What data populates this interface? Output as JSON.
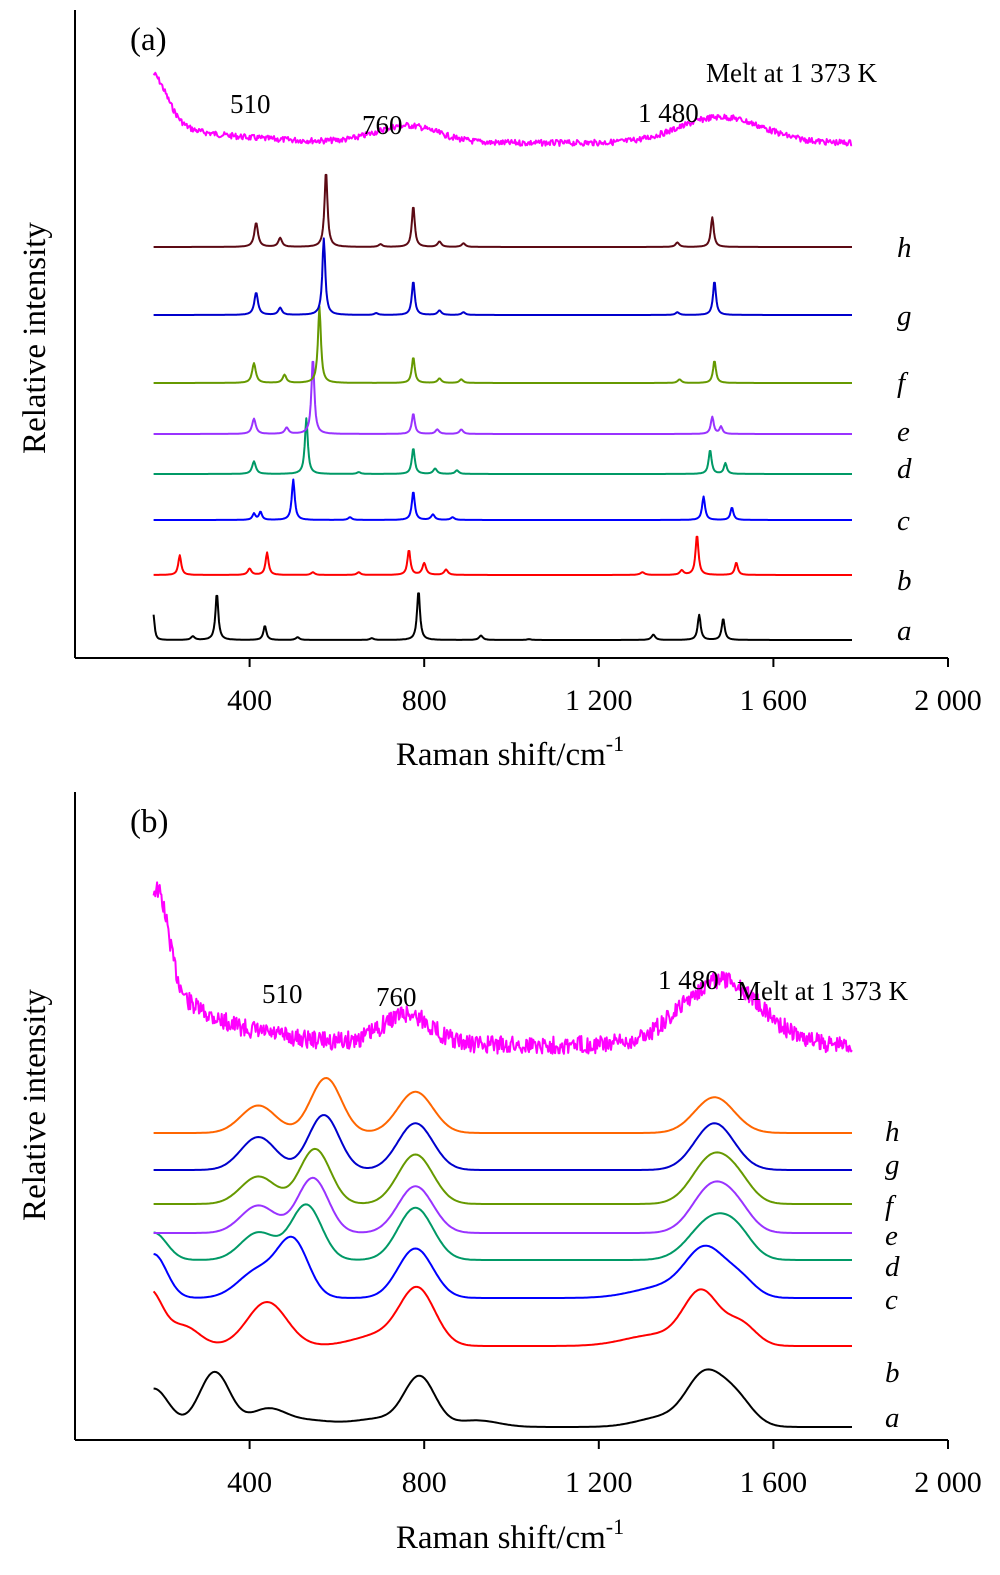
{
  "chart_data": [
    {
      "type": "line",
      "panel_label": "(a)",
      "xlabel": "Raman shift/cm",
      "xlabel_sup": "-1",
      "ylabel": "Relative intensity",
      "xlim": [
        0,
        2000
      ],
      "x_tick_values": [
        400,
        800,
        1200,
        1600,
        2000
      ],
      "x_tick_labels": [
        "400",
        "800",
        "1 200",
        "1 600",
        "2 000"
      ],
      "x_range": [
        180,
        1780
      ],
      "melt_label": "Melt at 1 373 K",
      "peak_labels": [
        "510",
        "760",
        "1 480"
      ],
      "series": [
        {
          "name": "a",
          "color": "#000000",
          "baseline": 0.0,
          "peaks": [
            [
              180,
              0.28,
              3
            ],
            [
              270,
              0.04,
              5
            ],
            [
              325,
              0.52,
              4
            ],
            [
              435,
              0.16,
              4
            ],
            [
              510,
              0.03,
              5
            ],
            [
              680,
              0.02,
              5
            ],
            [
              787,
              0.55,
              4
            ],
            [
              930,
              0.05,
              5
            ],
            [
              1040,
              0.01,
              5
            ],
            [
              1325,
              0.06,
              5
            ],
            [
              1430,
              0.28,
              4
            ],
            [
              1485,
              0.24,
              4
            ]
          ]
        },
        {
          "name": "b",
          "color": "#ff0000",
          "baseline": 0.0,
          "peaks": [
            [
              240,
              0.22,
              4
            ],
            [
              400,
              0.07,
              5
            ],
            [
              440,
              0.25,
              4
            ],
            [
              545,
              0.03,
              5
            ],
            [
              650,
              0.03,
              5
            ],
            [
              765,
              0.28,
              4
            ],
            [
              800,
              0.13,
              5
            ],
            [
              850,
              0.06,
              5
            ],
            [
              1300,
              0.03,
              6
            ],
            [
              1390,
              0.05,
              5
            ],
            [
              1425,
              0.45,
              4
            ],
            [
              1515,
              0.14,
              4
            ]
          ]
        },
        {
          "name": "c",
          "color": "#0000ff",
          "baseline": 0.0,
          "peaks": [
            [
              410,
              0.07,
              4
            ],
            [
              425,
              0.09,
              4
            ],
            [
              500,
              0.45,
              4
            ],
            [
              630,
              0.03,
              5
            ],
            [
              775,
              0.32,
              4
            ],
            [
              820,
              0.06,
              5
            ],
            [
              865,
              0.03,
              5
            ],
            [
              1440,
              0.26,
              4
            ],
            [
              1505,
              0.14,
              4
            ]
          ]
        },
        {
          "name": "d",
          "color": "#009966",
          "baseline": 0.0,
          "peaks": [
            [
              410,
              0.14,
              5
            ],
            [
              530,
              0.62,
              4
            ],
            [
              650,
              0.02,
              5
            ],
            [
              775,
              0.29,
              4
            ],
            [
              825,
              0.06,
              5
            ],
            [
              875,
              0.04,
              5
            ],
            [
              1455,
              0.27,
              4
            ],
            [
              1490,
              0.12,
              4
            ]
          ]
        },
        {
          "name": "e",
          "color": "#9933ff",
          "baseline": 0.0,
          "peaks": [
            [
              410,
              0.17,
              5
            ],
            [
              485,
              0.07,
              5
            ],
            [
              545,
              0.85,
              4
            ],
            [
              775,
              0.23,
              4
            ],
            [
              830,
              0.05,
              5
            ],
            [
              885,
              0.05,
              5
            ],
            [
              1460,
              0.19,
              4
            ],
            [
              1480,
              0.08,
              4
            ]
          ]
        },
        {
          "name": "f",
          "color": "#669900",
          "baseline": 0.0,
          "peaks": [
            [
              410,
              0.22,
              5
            ],
            [
              480,
              0.09,
              5
            ],
            [
              560,
              0.85,
              4
            ],
            [
              775,
              0.29,
              4
            ],
            [
              835,
              0.05,
              5
            ],
            [
              885,
              0.04,
              5
            ],
            [
              1385,
              0.04,
              5
            ],
            [
              1465,
              0.25,
              4
            ]
          ]
        },
        {
          "name": "g",
          "color": "#0000cc",
          "baseline": 0.0,
          "peaks": [
            [
              415,
              0.25,
              5
            ],
            [
              470,
              0.08,
              5
            ],
            [
              570,
              0.85,
              4
            ],
            [
              690,
              0.02,
              5
            ],
            [
              775,
              0.38,
              4
            ],
            [
              835,
              0.05,
              5
            ],
            [
              890,
              0.03,
              5
            ],
            [
              1380,
              0.03,
              5
            ],
            [
              1465,
              0.38,
              4
            ]
          ]
        },
        {
          "name": "h",
          "color": "#5c0a14",
          "baseline": 0.0,
          "peaks": [
            [
              415,
              0.27,
              5
            ],
            [
              470,
              0.1,
              5
            ],
            [
              575,
              0.85,
              4
            ],
            [
              700,
              0.03,
              5
            ],
            [
              775,
              0.46,
              4
            ],
            [
              835,
              0.06,
              5
            ],
            [
              890,
              0.04,
              5
            ],
            [
              1380,
              0.05,
              5
            ],
            [
              1460,
              0.33,
              4
            ]
          ]
        }
      ]
    },
    {
      "type": "line",
      "panel_label": "(b)",
      "xlabel": "Raman shift/cm",
      "xlabel_sup": "-1",
      "ylabel": "Relative intensity",
      "xlim": [
        0,
        2000
      ],
      "x_tick_values": [
        400,
        800,
        1200,
        1600,
        2000
      ],
      "x_tick_labels": [
        "400",
        "800",
        "1 200",
        "1 600",
        "2 000"
      ],
      "x_range": [
        180,
        1780
      ],
      "melt_label": "Melt at 1 373 K",
      "peak_labels": [
        "510",
        "760",
        "1 480"
      ],
      "series": [
        {
          "name": "a",
          "color": "#000000",
          "baseline": 0.0,
          "peaks": [
            [
              180,
              0.7,
              35
            ],
            [
              320,
              1.0,
              35
            ],
            [
              440,
              0.3,
              40
            ],
            [
              530,
              0.12,
              60
            ],
            [
              700,
              0.15,
              60
            ],
            [
              790,
              0.88,
              35
            ],
            [
              920,
              0.12,
              50
            ],
            [
              1350,
              0.18,
              60
            ],
            [
              1440,
              0.85,
              40
            ],
            [
              1510,
              0.55,
              40
            ]
          ]
        },
        {
          "name": "b",
          "color": "#ff0000",
          "baseline": 0.0,
          "peaks": [
            [
              170,
              1.0,
              30
            ],
            [
              250,
              0.35,
              35
            ],
            [
              440,
              0.8,
              45
            ],
            [
              700,
              0.2,
              60
            ],
            [
              785,
              1.0,
              40
            ],
            [
              1330,
              0.2,
              70
            ],
            [
              1435,
              0.95,
              40
            ],
            [
              1525,
              0.4,
              35
            ]
          ]
        },
        {
          "name": "c",
          "color": "#0000ff",
          "baseline": 0.0,
          "peaks": [
            [
              180,
              0.8,
              30
            ],
            [
              420,
              0.5,
              45
            ],
            [
              500,
              1.0,
              35
            ],
            [
              780,
              0.9,
              40
            ],
            [
              1350,
              0.2,
              70
            ],
            [
              1445,
              0.85,
              45
            ],
            [
              1525,
              0.3,
              35
            ]
          ]
        },
        {
          "name": "d",
          "color": "#009966",
          "baseline": 0.0,
          "peaks": [
            [
              180,
              0.5,
              30
            ],
            [
              420,
              0.5,
              40
            ],
            [
              530,
              1.0,
              35
            ],
            [
              780,
              0.95,
              40
            ],
            [
              1460,
              0.75,
              50
            ],
            [
              1520,
              0.3,
              35
            ]
          ]
        },
        {
          "name": "e",
          "color": "#9933ff",
          "baseline": 0.0,
          "peaks": [
            [
              420,
              0.5,
              40
            ],
            [
              545,
              1.0,
              35
            ],
            [
              780,
              0.85,
              40
            ],
            [
              1460,
              0.85,
              45
            ],
            [
              1520,
              0.3,
              35
            ]
          ]
        },
        {
          "name": "f",
          "color": "#669900",
          "baseline": 0.0,
          "peaks": [
            [
              420,
              0.5,
              40
            ],
            [
              550,
              1.0,
              35
            ],
            [
              780,
              0.9,
              40
            ],
            [
              1460,
              0.85,
              45
            ],
            [
              1520,
              0.3,
              35
            ]
          ]
        },
        {
          "name": "g",
          "color": "#0000cc",
          "baseline": 0.0,
          "peaks": [
            [
              420,
              0.6,
              40
            ],
            [
              570,
              1.0,
              35
            ],
            [
              780,
              0.85,
              40
            ],
            [
              1465,
              0.85,
              45
            ]
          ]
        },
        {
          "name": "h",
          "color": "#ff6600",
          "baseline": 0.0,
          "peaks": [
            [
              420,
              0.5,
              40
            ],
            [
              575,
              1.0,
              35
            ],
            [
              780,
              0.75,
              40
            ],
            [
              1465,
              0.65,
              45
            ]
          ]
        }
      ]
    }
  ]
}
